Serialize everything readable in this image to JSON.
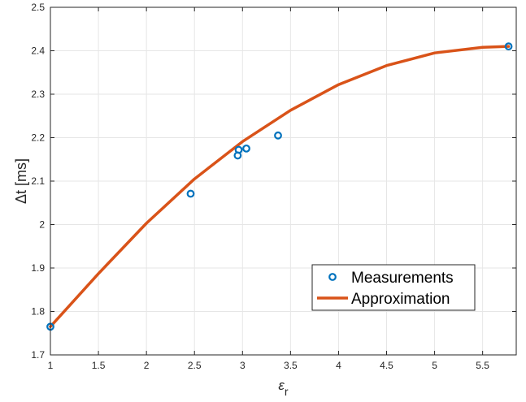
{
  "colors": {
    "measurements": "#0072BD",
    "approximation": "#D95319",
    "grid": "#E6E6E6",
    "axis": "#262626"
  },
  "chart_data": {
    "type": "scatter",
    "xlabel_main": "ε",
    "xlabel_sub": "r",
    "ylabel": "Δt [ms]",
    "xlim": [
      1,
      5.85
    ],
    "ylim": [
      1.7,
      2.5
    ],
    "xticks": [
      "1",
      "1.5",
      "2",
      "2.5",
      "3",
      "3.5",
      "4",
      "4.5",
      "5",
      "5.5"
    ],
    "yticks": [
      "1.7",
      "1.8",
      "1.9",
      "2",
      "2.1",
      "2.2",
      "2.3",
      "2.4",
      "2.5"
    ],
    "grid": true,
    "legend_position": "bottom-right",
    "series": [
      {
        "name": "Measurements",
        "style": "markers",
        "x": [
          1.0,
          2.46,
          2.95,
          2.96,
          3.04,
          3.37,
          5.77
        ],
        "y": [
          1.765,
          2.071,
          2.159,
          2.172,
          2.175,
          2.205,
          2.41
        ]
      },
      {
        "name": "Approximation",
        "style": "line",
        "x": [
          1.0,
          1.5,
          2.0,
          2.5,
          3.0,
          3.5,
          4.0,
          4.5,
          5.0,
          5.5,
          5.77
        ],
        "y": [
          1.765,
          1.887,
          2.003,
          2.105,
          2.191,
          2.263,
          2.322,
          2.366,
          2.395,
          2.408,
          2.41
        ]
      }
    ]
  }
}
